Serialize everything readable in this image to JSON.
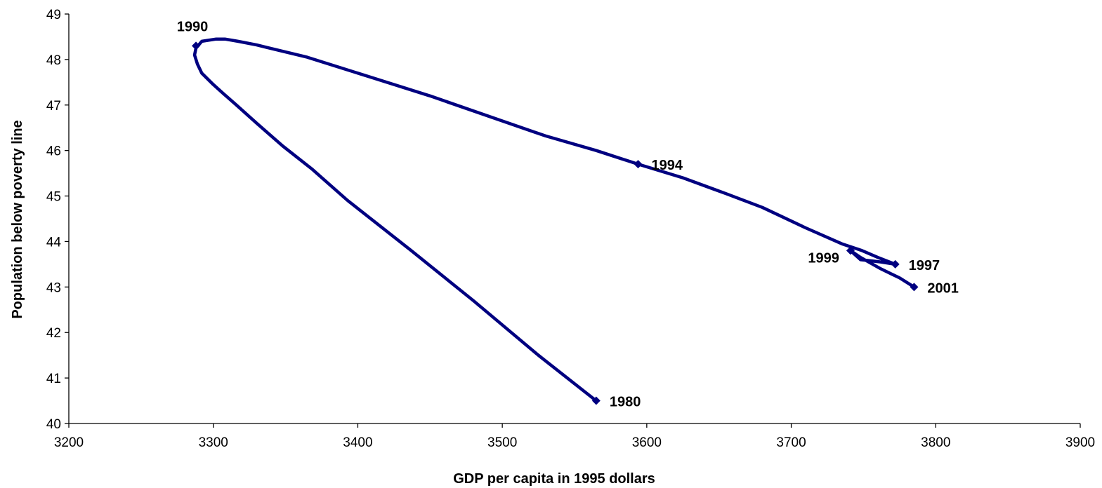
{
  "chart_data": {
    "type": "line",
    "title": "",
    "xlabel": "GDP per capita in 1995 dollars",
    "ylabel": "Population below poverty line",
    "xlim": [
      3200,
      3900
    ],
    "ylim": [
      40,
      49
    ],
    "x_ticks": [
      "3200",
      "3300",
      "3400",
      "3500",
      "3600",
      "3700",
      "3800",
      "3900"
    ],
    "y_ticks": [
      "40",
      "41",
      "42",
      "43",
      "44",
      "45",
      "46",
      "47",
      "48",
      "49"
    ],
    "grid": false,
    "legend": "none",
    "line_color": "#000080",
    "series": [
      {
        "curve": [
          [
            3565,
            40.5
          ],
          [
            3525,
            41.5
          ],
          [
            3480,
            42.7
          ],
          [
            3437,
            43.8
          ],
          [
            3393,
            44.9
          ],
          [
            3368,
            45.6
          ],
          [
            3348,
            46.1
          ],
          [
            3330,
            46.6
          ],
          [
            3316,
            47.0
          ],
          [
            3307,
            47.25
          ],
          [
            3300,
            47.45
          ],
          [
            3292,
            47.7
          ],
          [
            3289,
            47.9
          ],
          [
            3287,
            48.1
          ],
          [
            3288,
            48.25
          ],
          [
            3292,
            48.4
          ],
          [
            3302,
            48.45
          ],
          [
            3308,
            48.45
          ],
          [
            3317,
            48.4
          ],
          [
            3330,
            48.32
          ],
          [
            3365,
            48.05
          ],
          [
            3408,
            47.62
          ],
          [
            3450,
            47.2
          ],
          [
            3500,
            46.65
          ],
          [
            3530,
            46.32
          ],
          [
            3565,
            46.0
          ],
          [
            3594,
            45.7
          ],
          [
            3625,
            45.4
          ],
          [
            3655,
            45.05
          ],
          [
            3680,
            44.75
          ],
          [
            3710,
            44.3
          ],
          [
            3735,
            43.95
          ],
          [
            3749,
            43.8
          ],
          [
            3760,
            43.65
          ],
          [
            3772,
            43.5
          ],
          [
            3762,
            43.55
          ],
          [
            3748,
            43.6
          ],
          [
            3741,
            43.8
          ],
          [
            3748,
            43.65
          ],
          [
            3762,
            43.4
          ],
          [
            3775,
            43.2
          ],
          [
            3785,
            43.0
          ]
        ]
      }
    ],
    "points": [
      {
        "label": "1980",
        "x": 3565,
        "y": 40.5,
        "label_pos": "right"
      },
      {
        "label": "1990",
        "x": 3288,
        "y": 48.3,
        "label_pos": "above"
      },
      {
        "label": "1994",
        "x": 3594,
        "y": 45.7,
        "label_pos": "right"
      },
      {
        "label": "1997",
        "x": 3772,
        "y": 43.5,
        "label_pos": "right"
      },
      {
        "label": "1999",
        "x": 3741,
        "y": 43.8,
        "label_pos": "left"
      },
      {
        "label": "2001",
        "x": 3785,
        "y": 43.0,
        "label_pos": "right"
      }
    ]
  }
}
